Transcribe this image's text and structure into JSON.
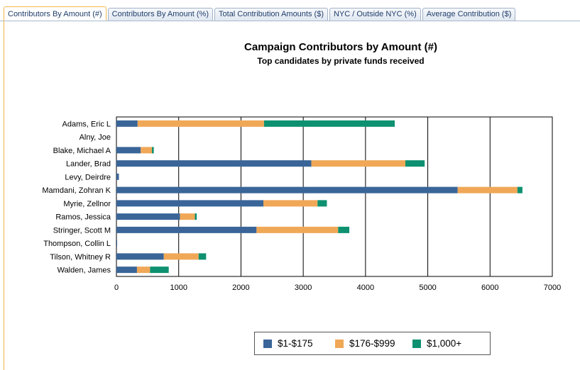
{
  "tabs": [
    {
      "label": "Contributors By Amount (#)",
      "active": true
    },
    {
      "label": "Contributors By Amount (%)",
      "active": false
    },
    {
      "label": "Total Contribution Amounts ($)",
      "active": false
    },
    {
      "label": "NYC / Outside NYC (%)",
      "active": false
    },
    {
      "label": "Average Contribution ($)",
      "active": false
    }
  ],
  "colors": {
    "tab_active_border": "#f0b64c",
    "tab_text": "#1f3d6b"
  },
  "chart_data": {
    "type": "bar",
    "orientation": "horizontal",
    "stacked": true,
    "title": "Campaign Contributors by Amount (#)",
    "subtitle": "Top candidates by private funds received",
    "categories": [
      "Adams, Eric L",
      "Alny, Joe",
      "Blake, Michael A",
      "Lander, Brad",
      "Levy, Deirdre",
      "Mamdani, Zohran K",
      "Myrie, Zellnor",
      "Ramos, Jessica",
      "Stringer, Scott M",
      "Thompson, Collin L",
      "Tilson, Whitney R",
      "Walden, James"
    ],
    "series": [
      {
        "name": "$1-$175",
        "color": "#3a6598",
        "values": [
          340,
          0,
          390,
          3130,
          40,
          5480,
          2360,
          1020,
          2250,
          10,
          760,
          330
        ]
      },
      {
        "name": "$176-$999",
        "color": "#f0a857",
        "values": [
          2030,
          0,
          180,
          1510,
          0,
          960,
          870,
          240,
          1310,
          0,
          560,
          210
        ]
      },
      {
        "name": "$1,000+",
        "color": "#0e9170",
        "values": [
          2100,
          0,
          30,
          310,
          0,
          80,
          150,
          30,
          180,
          0,
          120,
          300
        ]
      }
    ],
    "xlim": [
      0,
      7000
    ],
    "xticks": [
      0,
      1000,
      2000,
      3000,
      4000,
      5000,
      6000,
      7000
    ],
    "xlabel": "",
    "ylabel": "",
    "grid": true,
    "legend_position": "bottom"
  }
}
